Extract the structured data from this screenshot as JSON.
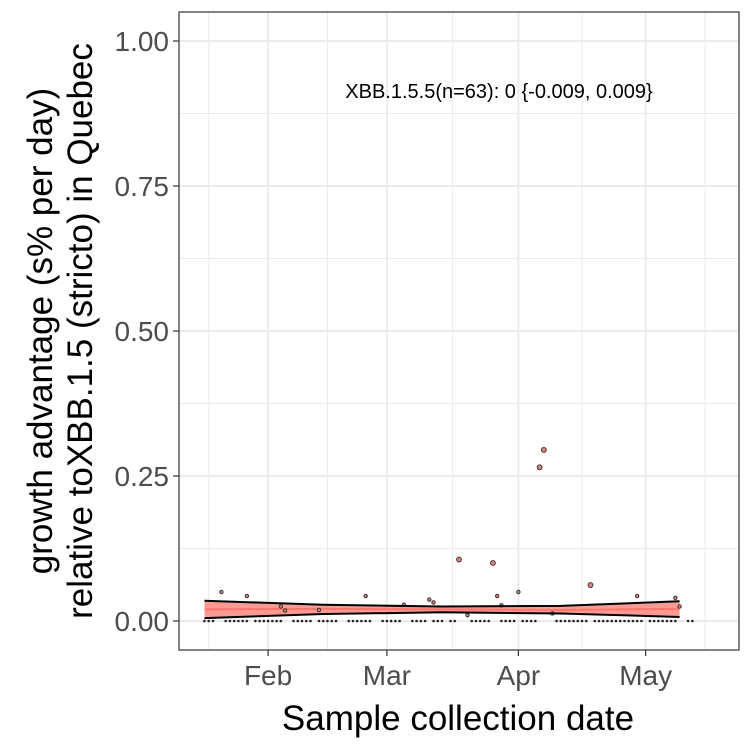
{
  "chart_data": {
    "type": "scatter",
    "xlabel": "Sample collection date",
    "ylabel_line1": "growth advantage (s% per day)",
    "ylabel_line2": "relative toXBB.1.5 (stricto) in Quebec",
    "annotation": "XBB.1.5.5(n=63): 0 {-0.009, 0.009}",
    "x_start": "2023-01-11",
    "x_end": "2023-05-23",
    "ylim": [
      -0.05,
      1.05
    ],
    "y_ticks": [
      0.0,
      0.25,
      0.5,
      0.75,
      1.0
    ],
    "y_tick_labels": [
      "0.00",
      "0.25",
      "0.50",
      "0.75",
      "1.00"
    ],
    "x_ticks": [
      "2023-02-01",
      "2023-03-01",
      "2023-04-01",
      "2023-05-01"
    ],
    "x_tick_labels": [
      "Feb",
      "Mar",
      "Apr",
      "May"
    ],
    "grid": true,
    "colors": {
      "ribbon": "#f8766d",
      "ribbon_fill": "#fb8f87",
      "fit_line": "#000000",
      "point_fill": "#e8817c",
      "grid": "#ebebeb",
      "panel_border": "#333333"
    },
    "fit": {
      "x": [
        "2023-01-17",
        "2023-02-14",
        "2023-03-14",
        "2023-04-11",
        "2023-05-09"
      ],
      "y": [
        0.02,
        0.021,
        0.02,
        0.019,
        0.021
      ],
      "upper": [
        0.035,
        0.028,
        0.025,
        0.026,
        0.034
      ],
      "lower": [
        0.005,
        0.012,
        0.015,
        0.013,
        0.007
      ]
    },
    "points": [
      {
        "x": "2023-01-21",
        "y": 0.05
      },
      {
        "x": "2023-01-27",
        "y": 0.043
      },
      {
        "x": "2023-02-04",
        "y": 0.025
      },
      {
        "x": "2023-02-05",
        "y": 0.018
      },
      {
        "x": "2023-02-13",
        "y": 0.019
      },
      {
        "x": "2023-02-24",
        "y": 0.043
      },
      {
        "x": "2023-03-05",
        "y": 0.028
      },
      {
        "x": "2023-03-11",
        "y": 0.037
      },
      {
        "x": "2023-03-12",
        "y": 0.032
      },
      {
        "x": "2023-03-18",
        "y": 0.106
      },
      {
        "x": "2023-03-20",
        "y": 0.01
      },
      {
        "x": "2023-03-26",
        "y": 0.1
      },
      {
        "x": "2023-03-27",
        "y": 0.043
      },
      {
        "x": "2023-03-28",
        "y": 0.027
      },
      {
        "x": "2023-04-01",
        "y": 0.05
      },
      {
        "x": "2023-04-06",
        "y": 0.265
      },
      {
        "x": "2023-04-07",
        "y": 0.295
      },
      {
        "x": "2023-04-09",
        "y": 0.013
      },
      {
        "x": "2023-04-18",
        "y": 0.062
      },
      {
        "x": "2023-04-29",
        "y": 0.043
      },
      {
        "x": "2023-05-08",
        "y": 0.04
      },
      {
        "x": "2023-05-09",
        "y": 0.025
      }
    ],
    "zero_points": [
      "2023-01-17",
      "2023-01-18",
      "2023-01-19",
      "2023-01-22",
      "2023-01-23",
      "2023-01-24",
      "2023-01-25",
      "2023-01-26",
      "2023-01-27",
      "2023-01-29",
      "2023-01-30",
      "2023-01-31",
      "2023-02-01",
      "2023-02-02",
      "2023-02-03",
      "2023-02-04",
      "2023-02-07",
      "2023-02-08",
      "2023-02-09",
      "2023-02-10",
      "2023-02-11",
      "2023-02-13",
      "2023-02-14",
      "2023-02-15",
      "2023-02-16",
      "2023-02-17",
      "2023-02-20",
      "2023-02-21",
      "2023-02-22",
      "2023-02-23",
      "2023-02-24",
      "2023-02-25",
      "2023-02-28",
      "2023-03-01",
      "2023-03-02",
      "2023-03-03",
      "2023-03-04",
      "2023-03-07",
      "2023-03-08",
      "2023-03-09",
      "2023-03-10",
      "2023-03-12",
      "2023-03-13",
      "2023-03-14",
      "2023-03-16",
      "2023-03-17",
      "2023-03-21",
      "2023-03-22",
      "2023-03-23",
      "2023-03-24",
      "2023-03-25",
      "2023-03-28",
      "2023-03-29",
      "2023-03-30",
      "2023-03-31",
      "2023-04-02",
      "2023-04-03",
      "2023-04-04",
      "2023-04-05",
      "2023-04-10",
      "2023-04-11",
      "2023-04-12",
      "2023-04-13",
      "2023-04-14",
      "2023-04-15",
      "2023-04-16",
      "2023-04-17",
      "2023-04-19",
      "2023-04-20",
      "2023-04-21",
      "2023-04-22",
      "2023-04-23",
      "2023-04-24",
      "2023-04-25",
      "2023-04-26",
      "2023-04-27",
      "2023-04-28",
      "2023-04-29",
      "2023-04-30",
      "2023-05-02",
      "2023-05-03",
      "2023-05-04",
      "2023-05-05",
      "2023-05-06",
      "2023-05-07",
      "2023-05-08",
      "2023-05-11",
      "2023-05-12"
    ]
  }
}
